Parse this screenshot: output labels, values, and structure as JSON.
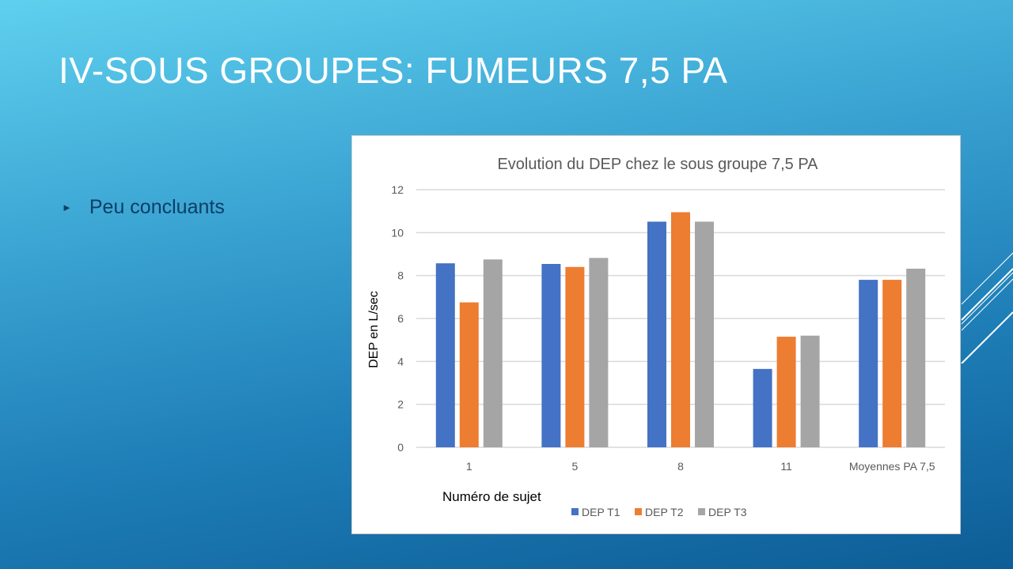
{
  "slide": {
    "title": "IV-SOUS GROUPES: FUMEURS 7,5 PA",
    "bullets": [
      "Peu concluants"
    ]
  },
  "chart_data": {
    "type": "bar",
    "title": "Evolution du DEP chez le sous groupe 7,5 PA",
    "xlabel": "Numéro de sujet",
    "ylabel": "DEP en L/sec",
    "ylim": [
      0,
      12
    ],
    "yticks": [
      0,
      2,
      4,
      6,
      8,
      10,
      12
    ],
    "grid": true,
    "legend": "bottom",
    "categories": [
      "1",
      "5",
      "8",
      "11",
      "Moyennes PA 7,5"
    ],
    "series": [
      {
        "name": "DEP T1",
        "color": "#4472c4",
        "values": [
          8.57,
          8.54,
          10.51,
          3.65,
          7.8
        ]
      },
      {
        "name": "DEP T2",
        "color": "#ed7d31",
        "values": [
          6.75,
          8.4,
          10.95,
          5.15,
          7.8
        ]
      },
      {
        "name": "DEP T3",
        "color": "#a5a5a5",
        "values": [
          8.75,
          8.82,
          10.51,
          5.2,
          8.32
        ]
      }
    ]
  }
}
